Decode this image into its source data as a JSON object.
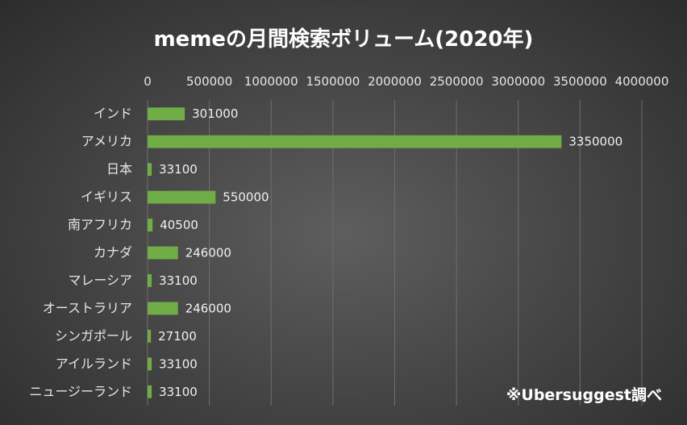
{
  "chart_data": {
    "type": "bar",
    "orientation": "horizontal",
    "title": "memeの月間検索ボリューム(2020年)",
    "categories": [
      "インド",
      "アメリカ",
      "日本",
      "イギリス",
      "南アフリカ",
      "カナダ",
      "マレーシア",
      "オーストラリア",
      "シンガポール",
      "アイルランド",
      "ニュージーランド"
    ],
    "values": [
      301000,
      3350000,
      33100,
      550000,
      40500,
      246000,
      33100,
      246000,
      27100,
      33100,
      33100
    ],
    "value_labels": [
      "301000",
      "3350000",
      "33100",
      "550000",
      "40500",
      "246000",
      "33100",
      "246000",
      "27100",
      "33100",
      "33100"
    ],
    "x_ticks": [
      "0",
      "500000",
      "1000000",
      "1500000",
      "2000000",
      "2500000",
      "3000000",
      "3500000",
      "4000000"
    ],
    "xlim": [
      0,
      4000000
    ],
    "x_axis_position": "top",
    "grid": true,
    "legend": "none",
    "bar_color": "#70ad47",
    "background_color": "#474747",
    "text_color": "#ffffff"
  },
  "annotation": "※Ubersuggest調べ"
}
